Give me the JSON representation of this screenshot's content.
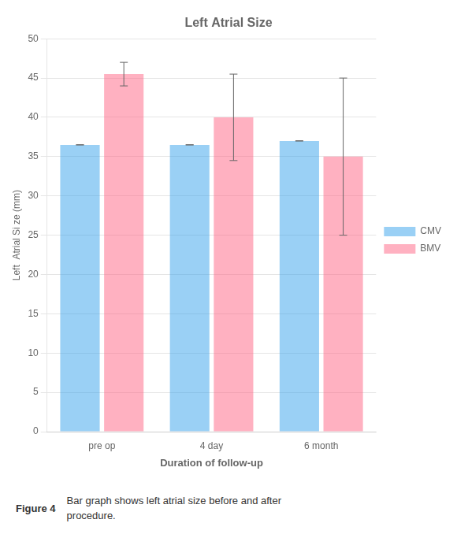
{
  "chart_data": {
    "type": "bar",
    "title": "Left Atrial Size",
    "xlabel": "Duration of follow-up",
    "ylabel": "Left  Atrial Si ze (mm)",
    "categories": [
      "pre op",
      "4 day",
      "6 month"
    ],
    "series": [
      {
        "name": "CMV",
        "values": [
          36.5,
          36.5,
          37.0
        ],
        "errors": [
          0.0,
          0.0,
          0.0
        ]
      },
      {
        "name": "BMV",
        "values": [
          45.5,
          40.0,
          35.0
        ],
        "errors": [
          1.5,
          5.5,
          10.0
        ]
      }
    ],
    "ylim": [
      0,
      50
    ],
    "yticks": [
      0,
      5,
      10,
      15,
      20,
      25,
      30,
      35,
      40,
      45,
      50
    ],
    "grid": true,
    "legend": "right",
    "figure_label": "Figure 4",
    "caption": [
      "Bar graph shows left atrial size before and after",
      "procedure."
    ]
  }
}
